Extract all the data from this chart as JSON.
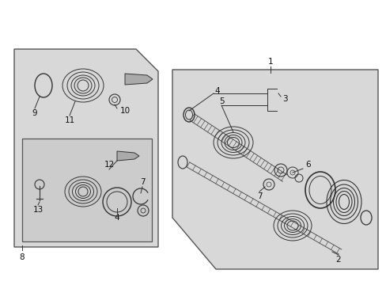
{
  "fig_bg": "#ffffff",
  "fig_w": 4.89,
  "fig_h": 3.6,
  "dpi": 100,
  "box_fill": "#d8d8d8",
  "box_edge": "#555555",
  "line_color": "#333333",
  "label_fontsize": 7.5,
  "parts_color": "#333333"
}
